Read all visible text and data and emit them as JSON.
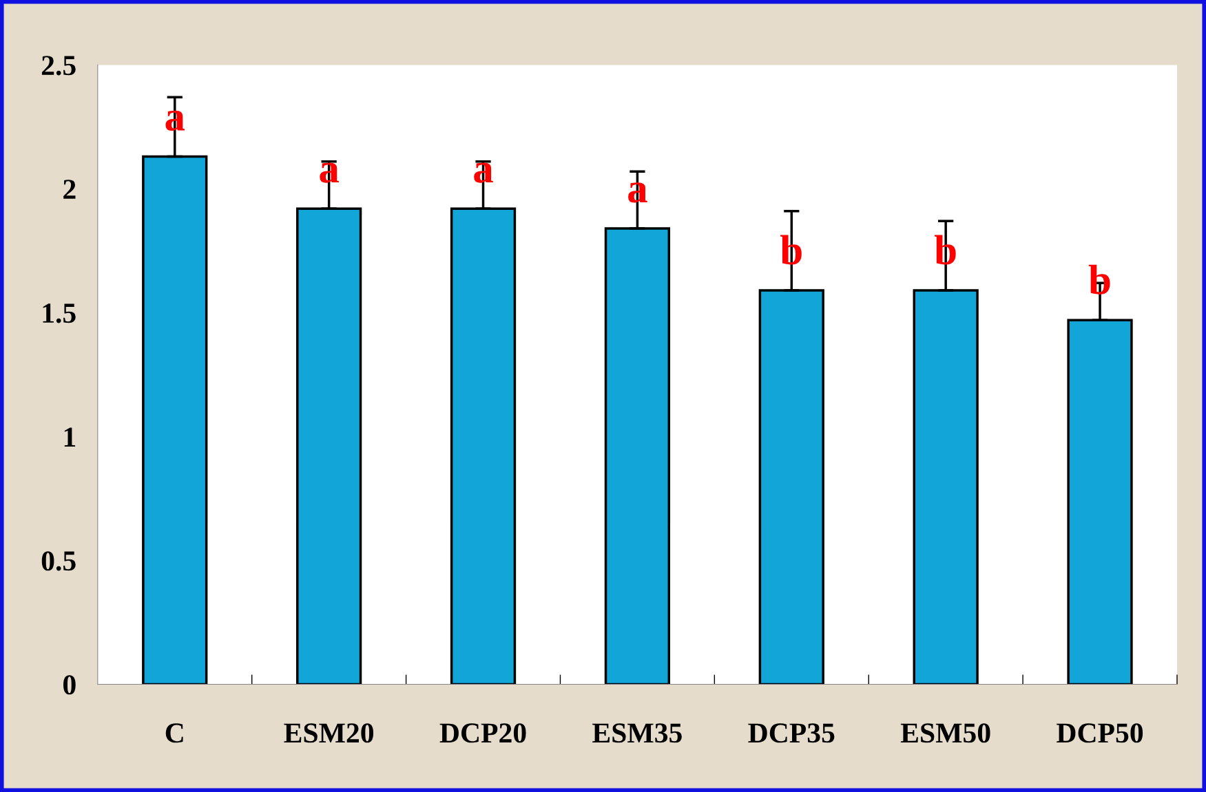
{
  "chart_data": {
    "type": "bar",
    "categories": [
      "C",
      "ESM20",
      "DCP20",
      "ESM35",
      "DCP35",
      "ESM50",
      "DCP50"
    ],
    "values": [
      2.13,
      1.92,
      1.92,
      1.84,
      1.59,
      1.59,
      1.47
    ],
    "errors": [
      [
        2.13,
        2.37
      ],
      [
        1.92,
        2.11
      ],
      [
        1.92,
        2.11
      ],
      [
        1.84,
        2.07
      ],
      [
        1.59,
        1.91
      ],
      [
        1.59,
        1.87
      ],
      [
        1.47,
        1.62
      ]
    ],
    "color": "#12a6d8",
    "ylim": [
      0,
      2.5
    ],
    "yticks": [
      0,
      0.5,
      1,
      1.5,
      2,
      2.5
    ],
    "grid": false,
    "annotations": [
      "a",
      "a",
      "a",
      "a",
      "b",
      "b",
      "b"
    ]
  }
}
